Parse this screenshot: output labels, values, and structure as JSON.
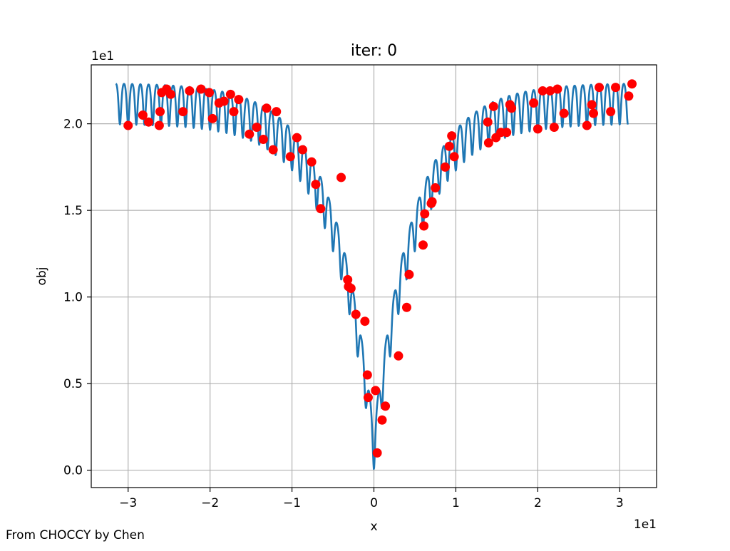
{
  "figure": {
    "credit": "From CHOCCY by Chen"
  },
  "chart_data": {
    "type": "scatter",
    "title": "iter: 0",
    "xlabel": "x",
    "ylabel": "obj",
    "x_offset_label": "1e1",
    "y_offset_label": "1e1",
    "xlim": [
      -34.5,
      34.5
    ],
    "ylim": [
      -1.0,
      23.4
    ],
    "x_ticks": [
      -30,
      -20,
      -10,
      0,
      10,
      20,
      30
    ],
    "x_tick_labels": [
      "−3",
      "−2",
      "−1",
      "0",
      "1",
      "2",
      "3"
    ],
    "y_ticks": [
      0,
      5,
      10,
      15,
      20
    ],
    "y_tick_labels": [
      "0.0",
      "0.5",
      "1.0",
      "1.5",
      "2.0"
    ],
    "grid": true,
    "legend": "none",
    "series": [
      {
        "kind": "line",
        "color": "#1f77b4",
        "function": "ackley_1d",
        "x_range": [
          -31.5,
          31.0
        ],
        "samples": 1600
      },
      {
        "kind": "scatter",
        "color": "#ff0000",
        "x": [
          -30.0,
          -28.2,
          -27.5,
          -26.2,
          -26.1,
          -25.9,
          -25.3,
          -24.8,
          -23.3,
          -22.5,
          -21.1,
          -20.1,
          -19.7,
          -18.9,
          -18.3,
          -17.5,
          -17.1,
          -16.5,
          -15.2,
          -14.3,
          -13.5,
          -13.1,
          -12.3,
          -11.9,
          -10.2,
          -9.4,
          -8.7,
          -7.6,
          -7.1,
          -6.5,
          -4.0,
          -3.2,
          -3.1,
          -2.8,
          -2.2,
          -1.1,
          -0.8,
          -0.7,
          0.2,
          0.4,
          1.0,
          1.4,
          3.0,
          4.0,
          4.3,
          6.0,
          6.1,
          6.2,
          7.0,
          7.1,
          7.5,
          8.7,
          9.2,
          9.5,
          9.8,
          13.9,
          14.0,
          14.6,
          14.9,
          15.5,
          16.2,
          16.6,
          16.8,
          19.5,
          20.0,
          20.6,
          21.5,
          22.0,
          22.4,
          23.2,
          26.0,
          26.6,
          26.8,
          27.5,
          28.9,
          29.5,
          31.1,
          31.5
        ],
        "y": [
          19.9,
          20.5,
          20.1,
          19.9,
          20.7,
          21.8,
          22.0,
          21.7,
          20.7,
          21.9,
          22.0,
          21.8,
          20.3,
          21.2,
          21.3,
          21.7,
          20.7,
          21.4,
          19.4,
          19.8,
          19.1,
          20.9,
          18.5,
          20.7,
          18.1,
          19.2,
          18.5,
          17.8,
          16.5,
          15.1,
          16.9,
          11.0,
          10.6,
          10.5,
          9.0,
          8.6,
          5.5,
          4.2,
          4.6,
          1.0,
          2.9,
          3.7,
          6.6,
          9.4,
          11.3,
          13.0,
          14.1,
          14.8,
          15.4,
          15.5,
          16.3,
          17.5,
          18.7,
          19.3,
          18.1,
          20.1,
          18.9,
          21.0,
          19.2,
          19.5,
          19.5,
          21.1,
          20.9,
          21.2,
          19.7,
          21.9,
          21.9,
          19.8,
          22.0,
          20.6,
          19.9,
          21.1,
          20.6,
          22.1,
          20.7,
          22.1,
          21.6,
          22.3
        ]
      }
    ]
  }
}
